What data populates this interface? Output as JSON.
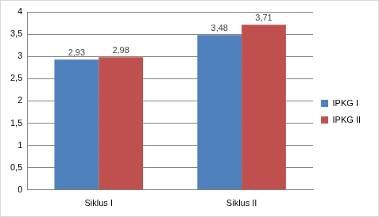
{
  "chart_data": {
    "type": "bar",
    "categories": [
      "Siklus I",
      "Siklus II"
    ],
    "series": [
      {
        "name": "IPKG I",
        "color": "#4f81bd",
        "values": [
          2.93,
          3.48
        ],
        "value_labels": [
          "2,93",
          "3,48"
        ]
      },
      {
        "name": "IPKG II",
        "color": "#c0504d",
        "values": [
          2.98,
          3.71
        ],
        "value_labels": [
          "2,98",
          "3,71"
        ]
      }
    ],
    "ylim": [
      0,
      4
    ],
    "yticks": [
      0,
      {
        "value": 0.5,
        "label": "0,5"
      },
      1,
      {
        "value": 1.5,
        "label": "1,5"
      },
      2,
      {
        "value": 2.5,
        "label": "2,5"
      },
      3,
      {
        "value": 3.5,
        "label": "3,5"
      },
      4
    ],
    "grid": true,
    "legend": "right",
    "data_labels": true
  }
}
